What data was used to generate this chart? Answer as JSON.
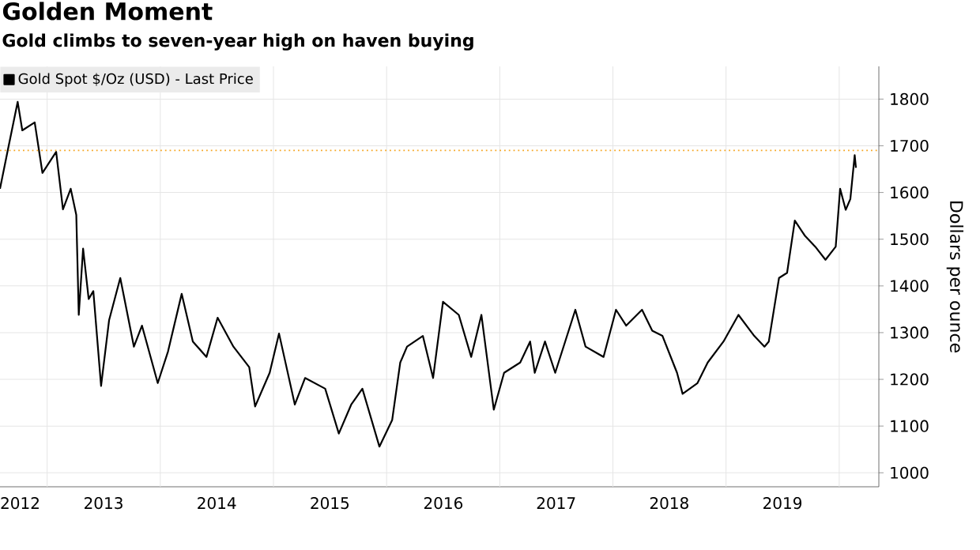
{
  "chart_data": {
    "type": "line",
    "title": "Golden Moment",
    "subtitle": "Gold climbs to seven-year high on haven buying",
    "ylabel": "Dollars per ounce",
    "x": [
      "2012-08-01",
      "2012-08-25",
      "2012-09-27",
      "2012-10-12",
      "2012-11-21",
      "2012-12-16",
      "2013-01-30",
      "2013-02-21",
      "2013-03-18",
      "2013-04-05",
      "2013-04-13",
      "2013-04-27",
      "2013-05-15",
      "2013-05-30",
      "2013-06-24",
      "2013-07-20",
      "2013-08-25",
      "2013-10-08",
      "2013-11-03",
      "2013-12-24",
      "2014-01-26",
      "2014-03-11",
      "2014-04-16",
      "2014-05-30",
      "2014-07-05",
      "2014-08-25",
      "2014-10-15",
      "2014-11-03",
      "2014-12-20",
      "2015-01-19",
      "2015-03-11",
      "2015-04-13",
      "2015-06-17",
      "2015-07-31",
      "2015-09-09",
      "2015-10-15",
      "2015-12-09",
      "2016-01-19",
      "2016-02-14",
      "2016-03-07",
      "2016-04-27",
      "2016-05-30",
      "2016-07-01",
      "2016-08-21",
      "2016-09-30",
      "2016-11-02",
      "2016-12-12",
      "2017-01-15",
      "2017-03-08",
      "2017-04-09",
      "2017-04-24",
      "2017-05-27",
      "2017-06-29",
      "2017-09-02",
      "2017-10-05",
      "2017-12-02",
      "2018-01-11",
      "2018-02-13",
      "2018-04-05",
      "2018-05-08",
      "2018-06-10",
      "2018-07-27",
      "2018-08-14",
      "2018-10-01",
      "2018-11-03",
      "2018-12-24",
      "2019-02-10",
      "2019-04-02",
      "2019-05-05",
      "2019-05-19",
      "2019-06-21",
      "2019-07-17",
      "2019-08-11",
      "2019-09-13",
      "2019-10-16",
      "2019-11-18",
      "2019-12-21",
      "2020-01-04",
      "2020-01-22",
      "2020-02-06",
      "2020-02-20",
      "2020-02-24"
    ],
    "series": [
      {
        "name": "Gold Spot $/Oz (USD) - Last Price",
        "color": "#000000",
        "values": [
          1608,
          1687,
          1794,
          1733,
          1750,
          1642,
          1687,
          1564,
          1608,
          1552,
          1338,
          1480,
          1372,
          1389,
          1186,
          1327,
          1417,
          1270,
          1315,
          1192,
          1260,
          1383,
          1281,
          1248,
          1332,
          1270,
          1226,
          1142,
          1214,
          1298,
          1146,
          1203,
          1180,
          1084,
          1146,
          1180,
          1056,
          1113,
          1236,
          1270,
          1293,
          1203,
          1366,
          1338,
          1248,
          1338,
          1135,
          1214,
          1236,
          1281,
          1214,
          1281,
          1214,
          1349,
          1270,
          1248,
          1349,
          1315,
          1349,
          1304,
          1293,
          1214,
          1169,
          1192,
          1236,
          1281,
          1338,
          1293,
          1270,
          1281,
          1417,
          1428,
          1540,
          1507,
          1484,
          1456,
          1484,
          1608,
          1563,
          1586,
          1680,
          1653
        ]
      }
    ],
    "xlim": [
      "2012-08-01",
      "2020-05-08"
    ],
    "ylim": [
      970,
      1870
    ],
    "xticks": [
      {
        "value": "2012-10-05",
        "label": "2012"
      },
      {
        "value": "2013-01-01",
        "label": null
      },
      {
        "value": "2013-07-02",
        "label": "2013"
      },
      {
        "value": "2014-01-01",
        "label": null
      },
      {
        "value": "2014-07-02",
        "label": "2014"
      },
      {
        "value": "2015-01-01",
        "label": null
      },
      {
        "value": "2015-07-02",
        "label": "2015"
      },
      {
        "value": "2016-01-01",
        "label": null
      },
      {
        "value": "2016-07-02",
        "label": "2016"
      },
      {
        "value": "2017-01-01",
        "label": null
      },
      {
        "value": "2017-07-02",
        "label": "2017"
      },
      {
        "value": "2018-01-01",
        "label": null
      },
      {
        "value": "2018-07-02",
        "label": "2018"
      },
      {
        "value": "2019-01-01",
        "label": null
      },
      {
        "value": "2019-07-02",
        "label": "2019"
      },
      {
        "value": "2020-01-01",
        "label": null
      }
    ],
    "yticks": [
      1000,
      1100,
      1200,
      1300,
      1400,
      1500,
      1600,
      1700,
      1800
    ],
    "ref_lines": [
      {
        "axis": "y",
        "value": 1690,
        "color": "#f5a623",
        "line_style": "dotted"
      }
    ],
    "grid": true,
    "legend": "top left",
    "line_style": "solid",
    "marker": "none"
  }
}
